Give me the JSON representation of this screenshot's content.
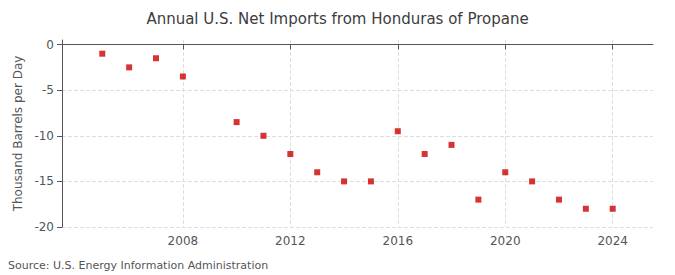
{
  "chart_data": {
    "type": "scatter",
    "title": "Annual U.S. Net Imports from Honduras of Propane",
    "ylabel": "Thousand Barrels per Day",
    "source": "Source: U.S. Energy Information Administration",
    "x": [
      2005,
      2006,
      2007,
      2008,
      2010,
      2011,
      2012,
      2013,
      2014,
      2015,
      2016,
      2017,
      2018,
      2019,
      2020,
      2021,
      2022,
      2023,
      2024
    ],
    "values": [
      -1.0,
      -2.5,
      -1.5,
      -3.5,
      -8.5,
      -10.0,
      -12.0,
      -14.0,
      -15.0,
      -15.0,
      -9.5,
      -12.0,
      -11.0,
      -17.0,
      -14.0,
      -15.0,
      -17.0,
      -18.0,
      -18.0
    ],
    "color": "#cc0000",
    "marker": "square",
    "xlim": [
      2003.5,
      2025.5
    ],
    "xticks": [
      2008,
      2012,
      2016,
      2020,
      2024
    ],
    "ylim": [
      -20,
      0.5
    ],
    "yticks": [
      0,
      -5,
      -10,
      -15,
      -20
    ],
    "grid": true
  }
}
